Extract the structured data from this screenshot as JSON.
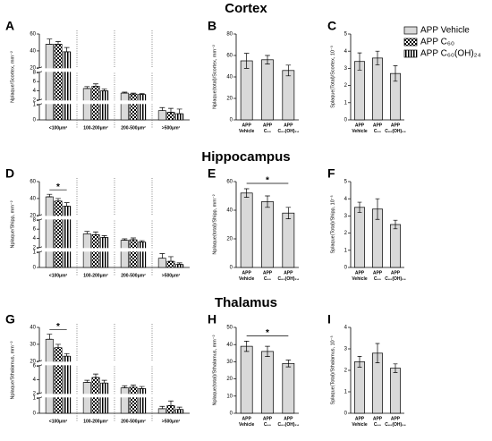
{
  "sections": [
    "Cortex",
    "Hippocampus",
    "Thalamus"
  ],
  "chart_data": [
    {
      "type": "grouped_bar",
      "panel": "A",
      "ylabel": "Nplaque/Scortex, mm⁻²",
      "categories": [
        "<100μm²",
        "100-200μm²",
        "200-500μm²",
        ">500μm²"
      ],
      "series": [
        {
          "name": "APP Vehicle",
          "color": "#d9d9d9",
          "pattern": "solid",
          "values": [
            48,
            4.5,
            3.5,
            0.6
          ],
          "errors": [
            6,
            0.4,
            0.2,
            0.2
          ]
        },
        {
          "name": "APP C₆₀",
          "color": "#000000",
          "pattern": "checkered",
          "values": [
            48,
            5,
            3.3,
            0.5
          ],
          "errors": [
            3,
            0.5,
            0.2,
            0.25
          ]
        },
        {
          "name": "APP C₆₀(OH)₂₄",
          "color": "#000000",
          "pattern": "stripes",
          "values": [
            39,
            4,
            3.2,
            0.4
          ],
          "errors": [
            5,
            0.4,
            0.2,
            0.3
          ]
        }
      ],
      "ysegments": [
        {
          "ylim": [
            0,
            1
          ],
          "yticks": [
            0,
            1
          ]
        },
        {
          "ylim": [
            2,
            8
          ],
          "yticks": [
            2,
            4,
            6,
            8
          ]
        },
        {
          "ylim": [
            20,
            60
          ],
          "yticks": [
            20,
            40,
            60
          ]
        }
      ],
      "annotations": []
    },
    {
      "type": "bar",
      "panel": "B",
      "ylabel": "Nplaque(total)/Scortex, mm⁻²",
      "categories": [
        [
          "APP",
          "Vehicle"
        ],
        [
          "APP",
          "C₆₀"
        ],
        [
          "APP",
          "C₆₀(OH)₂₄"
        ]
      ],
      "values": [
        55,
        56,
        46
      ],
      "errors": [
        7,
        4,
        5
      ],
      "color": "#d9d9d9",
      "ylim": [
        0,
        80
      ],
      "yticks": [
        0,
        20,
        40,
        60,
        80
      ],
      "annotations": []
    },
    {
      "type": "bar",
      "panel": "C",
      "ylabel": "Splaque(Total)/Scortex, 10⁻³",
      "categories": [
        [
          "APP",
          "Vehicle"
        ],
        [
          "APP",
          "C₆₀"
        ],
        [
          "APP",
          "C₆₀(OH)₂₄"
        ]
      ],
      "values": [
        3.4,
        3.6,
        2.7
      ],
      "errors": [
        0.5,
        0.4,
        0.45
      ],
      "color": "#d9d9d9",
      "ylim": [
        0,
        5
      ],
      "yticks": [
        0,
        1,
        2,
        3,
        4,
        5
      ],
      "annotations": []
    },
    {
      "type": "grouped_bar",
      "panel": "D",
      "ylabel": "Nplaque/Shipp, mm⁻²",
      "categories": [
        "<100μm²",
        "100-200μm²",
        "200-500μm²",
        ">500μm²"
      ],
      "series": [
        {
          "color": "#d9d9d9",
          "pattern": "solid",
          "values": [
            42,
            5,
            3.6,
            0.6
          ],
          "errors": [
            3,
            0.5,
            0.3,
            0.3
          ]
        },
        {
          "color": "#000000",
          "pattern": "checkered",
          "values": [
            37,
            4.8,
            3.7,
            0.4
          ],
          "errors": [
            3,
            0.6,
            0.4,
            0.3
          ]
        },
        {
          "color": "#000000",
          "pattern": "stripes",
          "values": [
            31,
            4.2,
            3.2,
            0.2
          ],
          "errors": [
            4,
            0.4,
            0.3,
            0.1
          ]
        }
      ],
      "ysegments": [
        {
          "ylim": [
            0,
            1
          ],
          "yticks": [
            0,
            1
          ]
        },
        {
          "ylim": [
            2,
            8
          ],
          "yticks": [
            2,
            4,
            6,
            8
          ]
        },
        {
          "ylim": [
            20,
            60
          ],
          "yticks": [
            20,
            40,
            60
          ]
        }
      ],
      "annotations": [
        "*"
      ]
    },
    {
      "type": "bar",
      "panel": "E",
      "ylabel": "Nplaque(total)/Shipp, mm⁻²",
      "categories": [
        [
          "APP",
          "Vehicle"
        ],
        [
          "APP",
          "C₆₀"
        ],
        [
          "APP",
          "C₆₀(OH)₂₄"
        ]
      ],
      "values": [
        52,
        46,
        38
      ],
      "errors": [
        3,
        4,
        4
      ],
      "color": "#d9d9d9",
      "ylim": [
        0,
        60
      ],
      "yticks": [
        0,
        20,
        40,
        60
      ],
      "annotations": [
        "*"
      ]
    },
    {
      "type": "bar",
      "panel": "F",
      "ylabel": "Splaque(Total)/Shipp, 10⁻³",
      "categories": [
        [
          "APP",
          "Vehicle"
        ],
        [
          "APP",
          "C₆₀"
        ],
        [
          "APP",
          "C₆₀(OH)₂₄"
        ]
      ],
      "values": [
        3.5,
        3.4,
        2.5
      ],
      "errors": [
        0.3,
        0.6,
        0.25
      ],
      "color": "#d9d9d9",
      "ylim": [
        0,
        5
      ],
      "yticks": [
        0,
        1,
        2,
        3,
        4,
        5
      ],
      "annotations": []
    },
    {
      "type": "grouped_bar",
      "panel": "G",
      "ylabel": "Nplaque/Sthalamus, mm⁻²",
      "categories": [
        "<100μm²",
        "100-200μm²",
        "200-500μm²",
        ">500μm²"
      ],
      "series": [
        {
          "color": "#d9d9d9",
          "pattern": "solid",
          "values": [
            33,
            3.6,
            2.8,
            0.3
          ],
          "errors": [
            3,
            0.3,
            0.3,
            0.15
          ]
        },
        {
          "color": "#000000",
          "pattern": "checkered",
          "values": [
            28,
            4.3,
            2.9,
            0.5
          ],
          "errors": [
            2,
            0.5,
            0.3,
            0.3
          ]
        },
        {
          "color": "#000000",
          "pattern": "stripes",
          "values": [
            23,
            3.5,
            2.7,
            0.25
          ],
          "errors": [
            1.5,
            0.4,
            0.3,
            0.15
          ]
        }
      ],
      "ysegments": [
        {
          "ylim": [
            0,
            1
          ],
          "yticks": [
            0,
            1
          ]
        },
        {
          "ylim": [
            2,
            6
          ],
          "yticks": [
            2,
            4,
            6
          ]
        },
        {
          "ylim": [
            20,
            40
          ],
          "yticks": [
            20,
            30,
            40
          ]
        }
      ],
      "annotations": [
        "*"
      ]
    },
    {
      "type": "bar",
      "panel": "H",
      "ylabel": "Nplaque(total)/Sthalamus, mm⁻²",
      "categories": [
        [
          "APP",
          "Vehicle"
        ],
        [
          "APP",
          "C₆₀"
        ],
        [
          "APP",
          "C₆₀(OH)₂₄"
        ]
      ],
      "values": [
        39,
        36,
        29
      ],
      "errors": [
        3,
        3,
        2
      ],
      "color": "#d9d9d9",
      "ylim": [
        0,
        50
      ],
      "yticks": [
        0,
        10,
        20,
        30,
        40,
        50
      ],
      "annotations": [
        "*"
      ]
    },
    {
      "type": "bar",
      "panel": "I",
      "ylabel": "Splaque(Total)/Sthalamus, 10⁻³",
      "categories": [
        [
          "APP",
          "Vehicle"
        ],
        [
          "APP",
          "C₆₀"
        ],
        [
          "APP",
          "C₆₀(OH)₂₄"
        ]
      ],
      "values": [
        2.4,
        2.8,
        2.1
      ],
      "errors": [
        0.25,
        0.45,
        0.2
      ],
      "color": "#d9d9d9",
      "ylim": [
        0,
        4
      ],
      "yticks": [
        0,
        1,
        2,
        3,
        4
      ],
      "annotations": []
    }
  ]
}
